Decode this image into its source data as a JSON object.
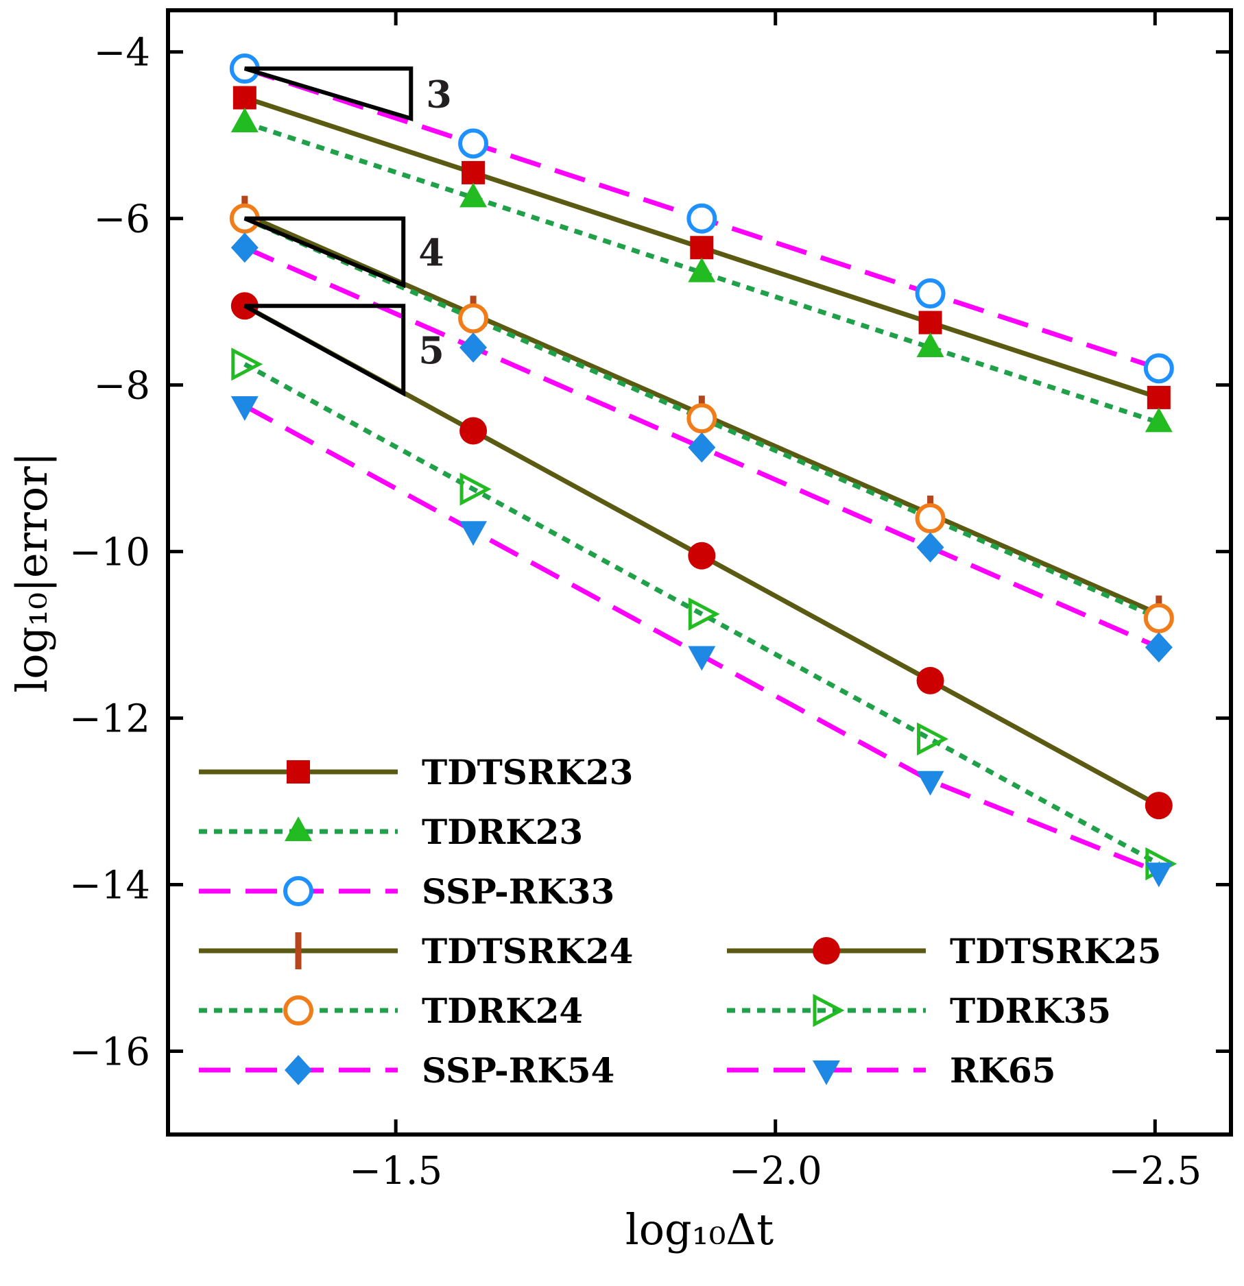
{
  "chart_data": {
    "type": "line",
    "title": "",
    "xlabel": "log₁₀Δt",
    "ylabel": "log₁₀|error|",
    "x_reversed": true,
    "xlim": [
      -1.2,
      -2.6
    ],
    "ylim": [
      -17,
      -3.5
    ],
    "xticks": [
      -1.5,
      -2.0,
      -2.5
    ],
    "xtick_labels": [
      "−1.5",
      "−2.0",
      "−2.5"
    ],
    "yticks": [
      -4,
      -6,
      -8,
      -10,
      -12,
      -14,
      -16
    ],
    "ytick_labels": [
      "−4",
      "−6",
      "−8",
      "−10",
      "−12",
      "−14",
      "−16"
    ],
    "x": [
      -1.301,
      -1.602,
      -1.903,
      -2.204,
      -2.505
    ],
    "series": [
      {
        "name": "TDTSRK23",
        "values": [
          -4.55,
          -5.45,
          -6.35,
          -7.25,
          -8.15
        ],
        "color": "#5b5a12",
        "dash": "solid",
        "marker": "square",
        "marker_color": "#cc0000"
      },
      {
        "name": "TDRK23",
        "values": [
          -4.85,
          -5.75,
          -6.65,
          -7.55,
          -8.45
        ],
        "color": "#21a04a",
        "dash": "dotted",
        "marker": "triangle-up",
        "marker_color": "#22bb22"
      },
      {
        "name": "SSP-RK33",
        "values": [
          -4.2,
          -5.1,
          -6.0,
          -6.9,
          -7.8
        ],
        "color": "#ff00ff",
        "dash": "dashed",
        "marker": "circle-open",
        "marker_color": "#1e90ff"
      },
      {
        "name": "TDTSRK24",
        "values": [
          -5.95,
          -7.15,
          -8.35,
          -9.55,
          -10.75
        ],
        "color": "#5b5a12",
        "dash": "solid",
        "marker": "vbar",
        "marker_color": "#b5461c"
      },
      {
        "name": "TDRK24",
        "values": [
          -6.0,
          -7.2,
          -8.4,
          -9.6,
          -10.8
        ],
        "color": "#21a04a",
        "dash": "dotted",
        "marker": "circle-open",
        "marker_color": "#f07d1a"
      },
      {
        "name": "SSP-RK54",
        "values": [
          -6.35,
          -7.55,
          -8.75,
          -9.95,
          -11.15
        ],
        "color": "#ff00ff",
        "dash": "dashed",
        "marker": "diamond",
        "marker_color": "#1e88e5"
      },
      {
        "name": "TDTSRK25",
        "values": [
          -7.05,
          -8.55,
          -10.05,
          -11.55,
          -13.05
        ],
        "color": "#5b5a12",
        "dash": "solid",
        "marker": "circle",
        "marker_color": "#cc0000"
      },
      {
        "name": "TDRK35",
        "values": [
          -7.75,
          -9.25,
          -10.75,
          -12.25,
          -13.75
        ],
        "color": "#21a04a",
        "dash": "dotted",
        "marker": "triangle-right-open",
        "marker_color": "#22bb22"
      },
      {
        "name": "RK65",
        "values": [
          -8.25,
          -9.75,
          -11.25,
          -12.75,
          -13.85
        ],
        "color": "#ff00ff",
        "dash": "dashed",
        "marker": "triangle-down",
        "marker_color": "#1e88e5"
      }
    ],
    "slope_triangles": [
      {
        "label": "3",
        "x": [
          -1.301,
          -1.52
        ],
        "y": [
          -4.2,
          -4.8
        ]
      },
      {
        "label": "4",
        "x": [
          -1.301,
          -1.51
        ],
        "y": [
          -6.0,
          -6.8
        ]
      },
      {
        "label": "5",
        "x": [
          -1.301,
          -1.51
        ],
        "y": [
          -7.05,
          -8.1
        ]
      }
    ],
    "legend": {
      "location": "bottom-left",
      "columns": [
        [
          "TDTSRK23",
          "TDRK23",
          "SSP-RK33",
          "TDTSRK24",
          "TDRK24",
          "SSP-RK54"
        ],
        [
          "TDTSRK25",
          "TDRK35",
          "RK65"
        ]
      ]
    }
  }
}
